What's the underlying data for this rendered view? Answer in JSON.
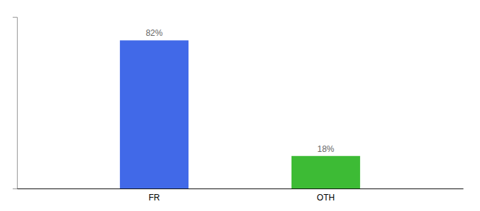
{
  "chart_data": {
    "type": "bar",
    "categories": [
      "FR",
      "OTH"
    ],
    "values": [
      82,
      18
    ],
    "value_labels": [
      "82%",
      "18%"
    ],
    "colors": [
      "#4169e8",
      "#3dbb35"
    ],
    "ylim": [
      0,
      95
    ],
    "data_labels": true,
    "tick_labels": "x",
    "grid": false
  }
}
